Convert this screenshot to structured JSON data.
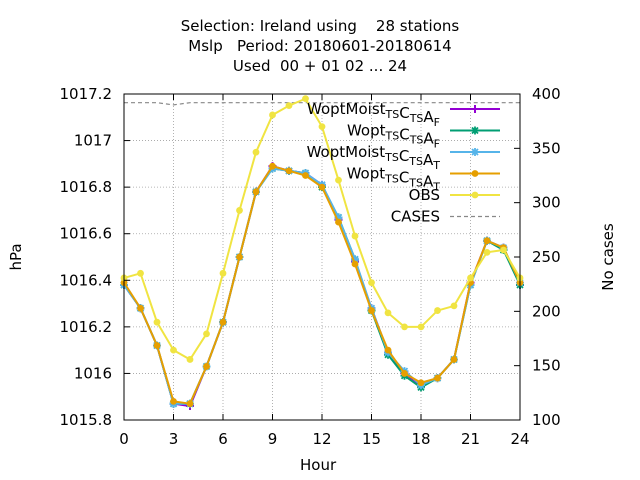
{
  "title_lines": [
    "Selection: Ireland using    28 stations",
    "Mslp   Period: 20180601-20180614",
    "Used  00 + 01 02 ... 24"
  ],
  "chart_data": {
    "type": "line",
    "xlabel": "Hour",
    "ylabel": "hPa",
    "y2label": "No cases",
    "xlim": [
      0,
      24
    ],
    "ylim": [
      1015.8,
      1017.2
    ],
    "y2lim": [
      100,
      400
    ],
    "xticks": [
      "0",
      "3",
      "6",
      "9",
      "12",
      "15",
      "18",
      "21",
      "24"
    ],
    "yticks": [
      "1015.8",
      "1016",
      "1016.2",
      "1016.4",
      "1016.6",
      "1016.8",
      "1017",
      "1017.2"
    ],
    "y2ticks": [
      "100",
      "150",
      "200",
      "250",
      "300",
      "350",
      "400"
    ],
    "grid": true,
    "legend_position": "top-right",
    "x": [
      0,
      1,
      2,
      3,
      4,
      5,
      6,
      7,
      8,
      9,
      10,
      11,
      12,
      13,
      14,
      15,
      16,
      17,
      18,
      19,
      20,
      21,
      22,
      23,
      24
    ],
    "series": [
      {
        "name": "WoptMoist TS CTS AF",
        "legend_parts": [
          [
            "WoptMoist",
            ""
          ],
          [
            "TS",
            "sub"
          ],
          [
            "C",
            ""
          ],
          [
            "TS",
            "sub"
          ],
          [
            "A",
            ""
          ],
          [
            "F",
            "sub"
          ]
        ],
        "color": "#9400d3",
        "marker": "plus",
        "values": [
          1016.38,
          1016.28,
          1016.12,
          1015.87,
          1015.86,
          1016.03,
          1016.22,
          1016.5,
          1016.78,
          1016.89,
          1016.87,
          1016.86,
          1016.81,
          1016.66,
          1016.48,
          1016.28,
          1016.09,
          1016.0,
          1015.95,
          1015.98,
          1016.06,
          1016.39,
          1016.57,
          1016.54,
          1016.38
        ]
      },
      {
        "name": "Wopt TS CTS AF",
        "legend_parts": [
          [
            "Wopt",
            ""
          ],
          [
            "TS",
            "sub"
          ],
          [
            "C",
            ""
          ],
          [
            "TS",
            "sub"
          ],
          [
            "A",
            ""
          ],
          [
            "F",
            "sub"
          ]
        ],
        "color": "#009e73",
        "marker": "star",
        "values": [
          1016.38,
          1016.28,
          1016.12,
          1015.87,
          1015.87,
          1016.03,
          1016.22,
          1016.5,
          1016.78,
          1016.88,
          1016.87,
          1016.86,
          1016.8,
          1016.67,
          1016.49,
          1016.27,
          1016.08,
          1015.99,
          1015.94,
          1015.98,
          1016.06,
          1016.38,
          1016.57,
          1016.53,
          1016.38
        ]
      },
      {
        "name": "WoptMoist TS CTS AT",
        "legend_parts": [
          [
            "WoptMoist",
            ""
          ],
          [
            "TS",
            "sub"
          ],
          [
            "C",
            ""
          ],
          [
            "TS",
            "sub"
          ],
          [
            "A",
            ""
          ],
          [
            "T",
            "sub"
          ]
        ],
        "color": "#56b4e9",
        "marker": "star",
        "values": [
          1016.38,
          1016.28,
          1016.12,
          1015.87,
          1015.87,
          1016.03,
          1016.22,
          1016.5,
          1016.78,
          1016.88,
          1016.87,
          1016.86,
          1016.81,
          1016.67,
          1016.49,
          1016.28,
          1016.09,
          1016.01,
          1015.95,
          1015.98,
          1016.06,
          1016.38,
          1016.57,
          1016.54,
          1016.39
        ]
      },
      {
        "name": "Wopt TS CTS AT",
        "legend_parts": [
          [
            "Wopt",
            ""
          ],
          [
            "TS",
            "sub"
          ],
          [
            "C",
            ""
          ],
          [
            "TS",
            "sub"
          ],
          [
            "A",
            ""
          ],
          [
            "T",
            "sub"
          ]
        ],
        "color": "#e69f00",
        "marker": "dot",
        "values": [
          1016.39,
          1016.28,
          1016.12,
          1015.88,
          1015.87,
          1016.03,
          1016.22,
          1016.5,
          1016.78,
          1016.89,
          1016.87,
          1016.85,
          1016.8,
          1016.65,
          1016.47,
          1016.27,
          1016.1,
          1016.0,
          1015.96,
          1015.98,
          1016.06,
          1016.39,
          1016.57,
          1016.54,
          1016.39
        ]
      },
      {
        "name": "OBS",
        "legend_parts": [
          [
            "OBS",
            ""
          ]
        ],
        "color": "#f0e442",
        "marker": "dot",
        "values": [
          1016.41,
          1016.43,
          1016.22,
          1016.1,
          1016.06,
          1016.17,
          1016.43,
          1016.7,
          1016.95,
          1017.11,
          1017.15,
          1017.18,
          1017.06,
          1016.83,
          1016.59,
          1016.39,
          1016.26,
          1016.2,
          1016.2,
          1016.27,
          1016.29,
          1016.41,
          1016.52,
          1016.53,
          1016.41
        ]
      },
      {
        "name": "CASES",
        "legend_parts": [
          [
            "CASES",
            ""
          ]
        ],
        "color": "#888888",
        "axis": "y2",
        "style": "dashed",
        "values": [
          392,
          392,
          392,
          390,
          392,
          392,
          392,
          392,
          392,
          392,
          392,
          392,
          392,
          392,
          392,
          392,
          392,
          392,
          392,
          392,
          392,
          392,
          392,
          392,
          392
        ]
      }
    ]
  }
}
